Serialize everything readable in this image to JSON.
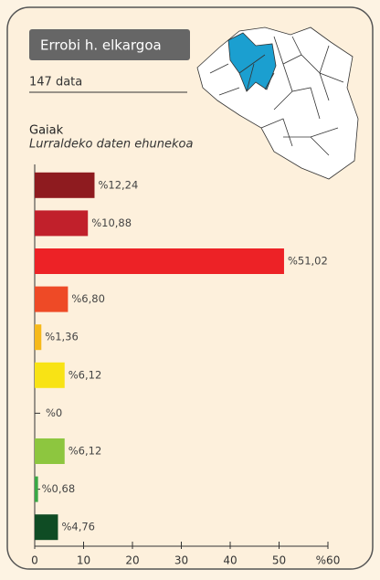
{
  "header": {
    "title": "Errobi h. elkargoa",
    "count": "147 data"
  },
  "chart_data": {
    "type": "bar",
    "orientation": "horizontal",
    "title": "Gaiak",
    "subtitle": "Lurraldeko daten ehunekoa",
    "categories": [
      null,
      null,
      null,
      null,
      null,
      null,
      null,
      null,
      null,
      null
    ],
    "values": [
      12.24,
      10.88,
      51.02,
      6.8,
      1.36,
      6.12,
      0,
      6.12,
      0.68,
      4.76
    ],
    "value_labels": [
      "%12,24",
      "%10,88",
      "%51,02",
      "%6,80",
      "%1,36",
      "%6,12",
      "%0",
      "%6,12",
      "%0,68",
      "%4,76"
    ],
    "colors": [
      "#8e1b1f",
      "#c1202b",
      "#ed2226",
      "#ee4a26",
      "#f6b91b",
      "#f8e315",
      "#555555",
      "#8dc63f",
      "#3aa845",
      "#0f4c24"
    ],
    "xlim": [
      0,
      60
    ],
    "xticks": [
      0,
      10,
      20,
      30,
      40,
      50,
      {
        "value": 60,
        "label": "%60"
      }
    ]
  }
}
